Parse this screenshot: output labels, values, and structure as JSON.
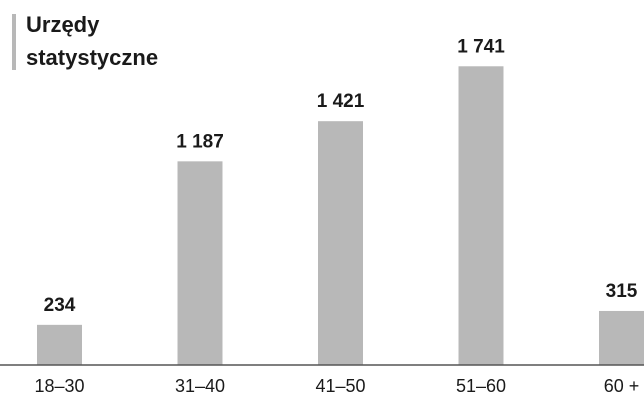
{
  "chart_data": {
    "type": "bar",
    "title_lines": [
      "Urzędy",
      "statystyczne"
    ],
    "categories": [
      "18–30",
      "31–40",
      "41–50",
      "51–60",
      "60 +"
    ],
    "values": [
      234,
      1187,
      1421,
      1741,
      315
    ],
    "value_labels": [
      "234",
      "1 187",
      "1 421",
      "1 741",
      "315"
    ],
    "ylim": [
      0,
      1900
    ],
    "grid": false,
    "colors": {
      "bar": "#b8b8b8",
      "title_accent": "#b8b8b8",
      "axis": "#555555",
      "text": "#1a1a1a"
    }
  }
}
